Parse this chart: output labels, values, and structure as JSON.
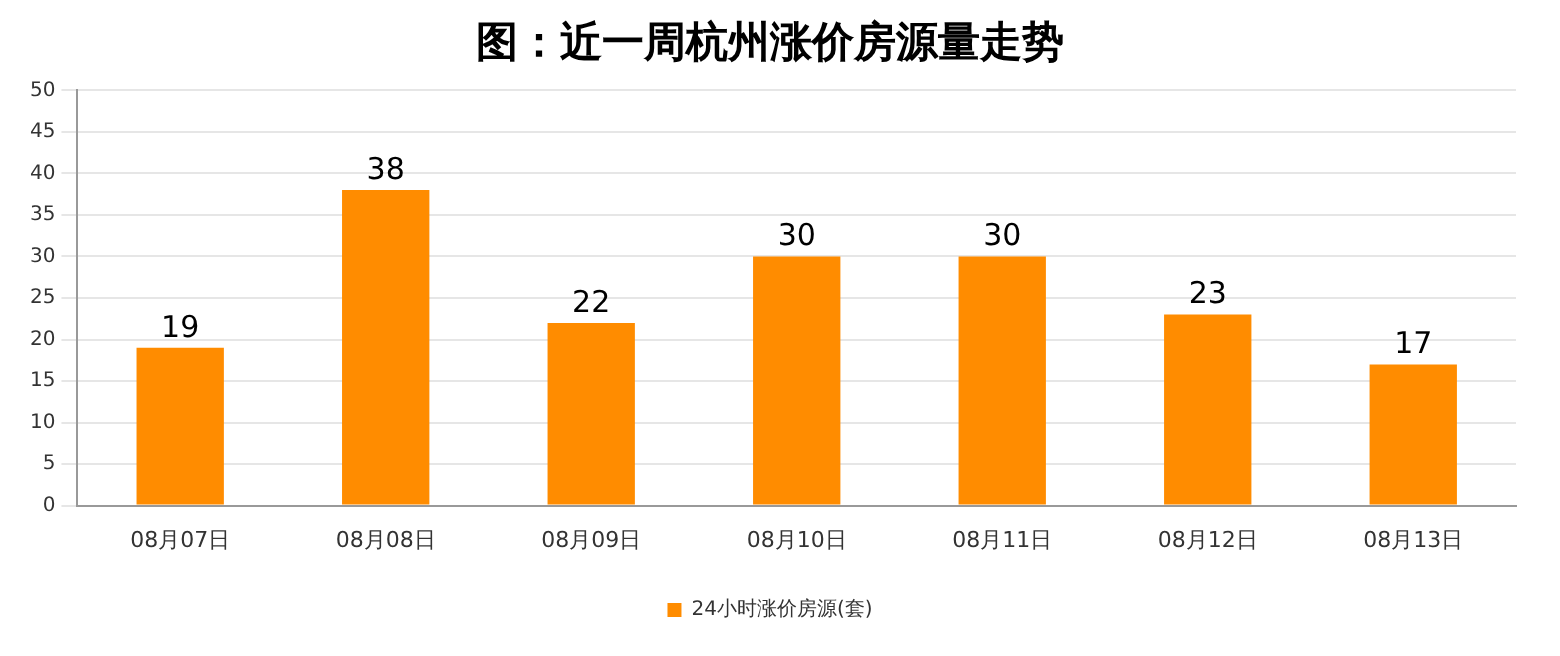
{
  "chart_data": {
    "type": "bar",
    "title": "图：近一周杭州涨价房源量走势",
    "categories": [
      "08月07日",
      "08月08日",
      "08月09日",
      "08月10日",
      "08月11日",
      "08月12日",
      "08月13日"
    ],
    "series": [
      {
        "name": "24小时涨价房源(套)",
        "color": "#ff8c00",
        "values": [
          19,
          38,
          22,
          30,
          30,
          23,
          17
        ]
      }
    ],
    "ylim": [
      0,
      50
    ],
    "yticks": [
      0,
      5,
      10,
      15,
      20,
      25,
      30,
      35,
      40,
      45,
      50
    ],
    "grid": "y",
    "legend": "bottom",
    "data_labels": true
  }
}
